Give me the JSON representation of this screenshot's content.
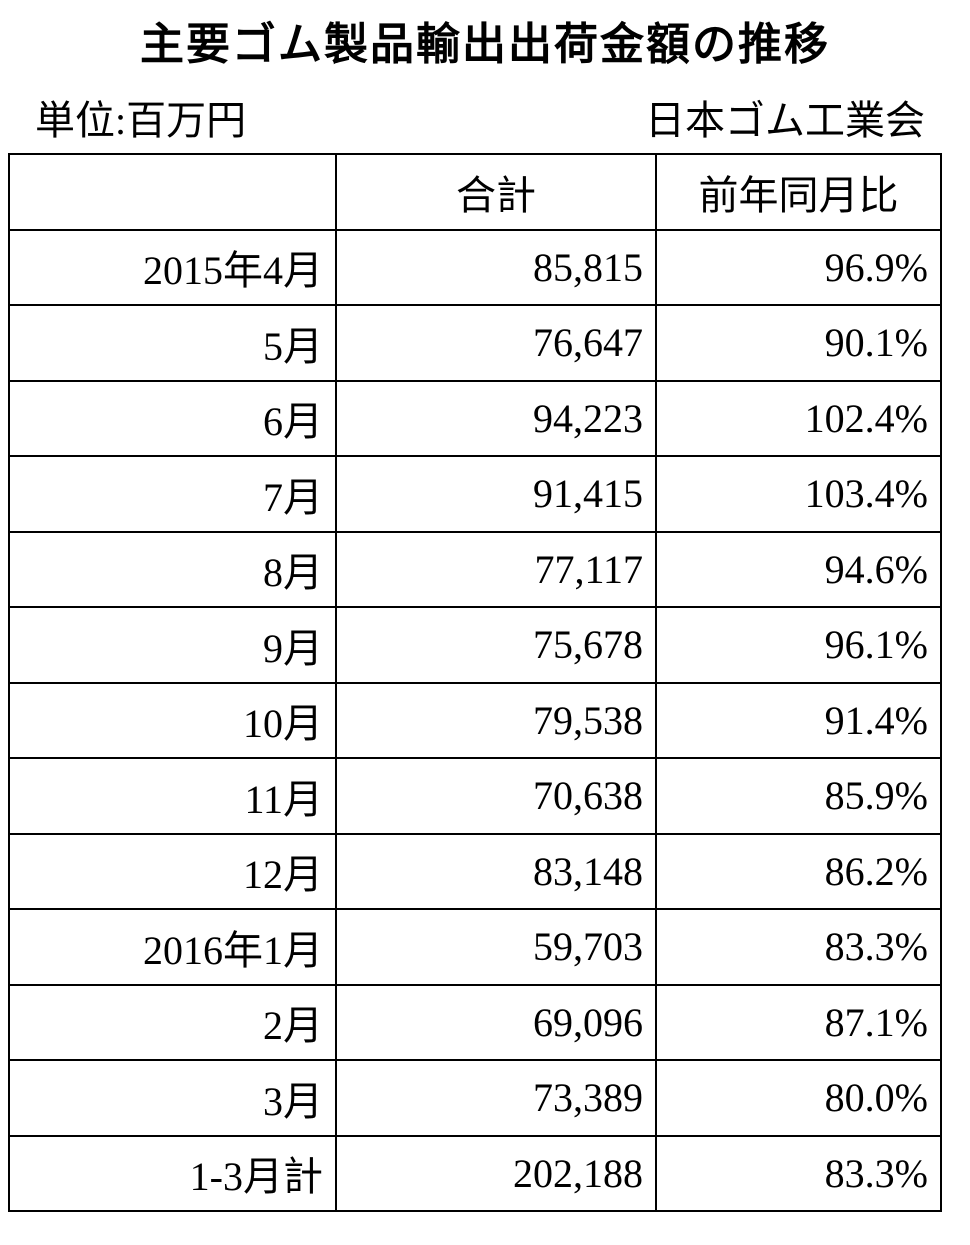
{
  "header": {
    "title": "主要ゴム製品輸出出荷金額の推移",
    "unit": "単位:百万円",
    "source": "日本ゴム工業会"
  },
  "table": {
    "columns": [
      "合計",
      "前年同月比"
    ],
    "rows": [
      [
        "2015年4月",
        "85,815",
        "96.9%"
      ],
      [
        "5月",
        "76,647",
        "90.1%"
      ],
      [
        "6月",
        "94,223",
        "102.4%"
      ],
      [
        "7月",
        "91,415",
        "103.4%"
      ],
      [
        "8月",
        "77,117",
        "94.6%"
      ],
      [
        "9月",
        "75,678",
        "96.1%"
      ],
      [
        "10月",
        "79,538",
        "91.4%"
      ],
      [
        "11月",
        "70,638",
        "85.9%"
      ],
      [
        "12月",
        "83,148",
        "86.2%"
      ],
      [
        "2016年1月",
        "59,703",
        "83.3%"
      ],
      [
        "2月",
        "69,096",
        "87.1%"
      ],
      [
        "3月",
        "73,389",
        "80.0%"
      ],
      [
        "1-3月計",
        "202,188",
        "83.3%"
      ]
    ]
  }
}
